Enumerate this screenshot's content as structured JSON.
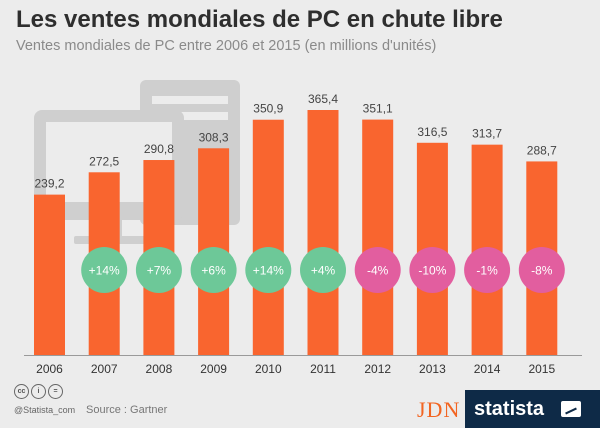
{
  "title": "Les ventes mondiales de PC en chute libre",
  "subtitle": "Ventes mondiales de PC entre 2006 et 2015 (en millions d'unités)",
  "footer": {
    "handle": "@Statista_com",
    "source": "Source : Gartner",
    "brand_jdn": "JDN",
    "brand_statista": "statista",
    "cc_icons": [
      "cc",
      "i",
      "="
    ]
  },
  "colors": {
    "bar": "#f9652f",
    "positive": "#6dc898",
    "negative": "#e25e9f",
    "background": "#ececec"
  },
  "chart_data": {
    "type": "bar",
    "categories": [
      "2006",
      "2007",
      "2008",
      "2009",
      "2010",
      "2011",
      "2012",
      "2013",
      "2014",
      "2015"
    ],
    "values": [
      239.2,
      272.5,
      290.8,
      308.3,
      350.9,
      365.4,
      351.1,
      316.5,
      313.7,
      288.7
    ],
    "value_labels": [
      "239,2",
      "272,5",
      "290,8",
      "308,3",
      "350,9",
      "365,4",
      "351,1",
      "316,5",
      "313,7",
      "288,7"
    ],
    "growth_labels": [
      "",
      "+14%",
      "+7%",
      "+6%",
      "+14%",
      "+4%",
      "-4%",
      "-10%",
      "-1%",
      "-8%"
    ],
    "growth_sign": [
      "",
      "positive",
      "positive",
      "positive",
      "positive",
      "positive",
      "negative",
      "negative",
      "negative",
      "negative"
    ],
    "ylim": [
      0,
      365.4
    ]
  }
}
